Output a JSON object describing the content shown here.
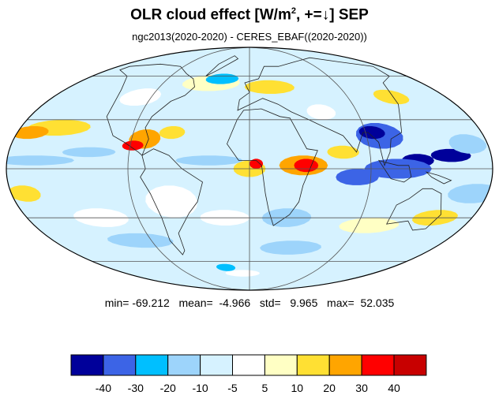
{
  "title": {
    "main": "OLR cloud effect [W/m",
    "sup": "2",
    "rest": ", +=↓]  SEP"
  },
  "subtitle": "ngc2013(2020-2020) - CERES_EBAF((2020-2020))",
  "stats": "min= -69.212   mean=  -4.966   std=   9.965   max=  52.035",
  "colorbar": {
    "colors": [
      "#00009a",
      "#3c64e6",
      "#00bfff",
      "#9dd4fb",
      "#d6f2ff",
      "#ffffff",
      "#ffffc4",
      "#ffe033",
      "#ffa500",
      "#ff0000",
      "#c80000"
    ],
    "labels": [
      "-40",
      "-30",
      "-20",
      "-10",
      "-5",
      "5",
      "10",
      "20",
      "30",
      "40"
    ]
  },
  "map": {
    "projection": "mollweide",
    "ocean_background": "#d6f2ff",
    "graticule_color": "#555555",
    "coast_color": "#222222"
  }
}
